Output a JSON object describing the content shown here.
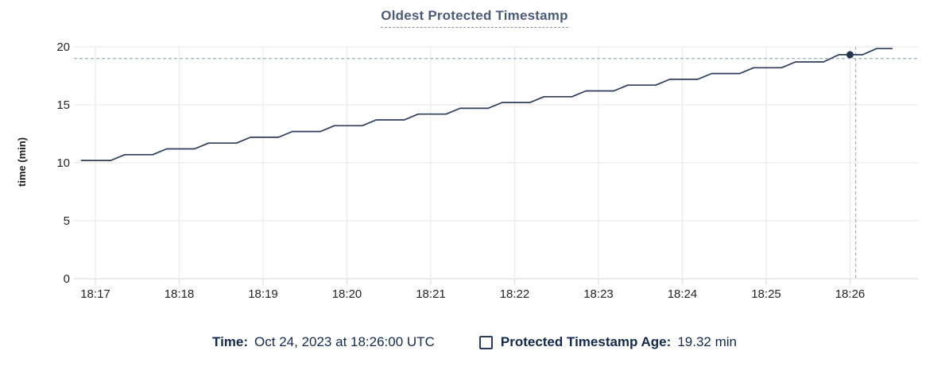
{
  "chart": {
    "title": "Oldest Protected Timestamp",
    "y_axis_label": "time (min)"
  },
  "legend": {
    "time_label": "Time:",
    "time_value": "Oct 24, 2023 at 18:26:00 UTC",
    "series_label": "Protected Timestamp Age:",
    "series_value": "19.32 min"
  },
  "colors": {
    "line": "#2c3d5c",
    "dot": "#24344f",
    "grid": "#ededed",
    "grid_baseline": "#e4e4e4",
    "crosshair": "#9cb1bf",
    "title_text": "#4c5b77",
    "legend_text": "#13294b",
    "axis_text": "#242424"
  },
  "chart_data": {
    "type": "line",
    "title": "Oldest Protected Timestamp",
    "xlabel": "",
    "ylabel": "time (min)",
    "x_ticks": [
      "18:17",
      "18:18",
      "18:19",
      "18:20",
      "18:21",
      "18:22",
      "18:23",
      "18:24",
      "18:25",
      "18:26"
    ],
    "y_ticks": [
      0,
      5,
      10,
      15,
      20
    ],
    "ylim": [
      0,
      20
    ],
    "x_range": [
      "18:16:45",
      "18:26:48"
    ],
    "grid": true,
    "legend_position": "bottom",
    "series": [
      {
        "name": "Protected Timestamp Age",
        "unit": "min",
        "points": [
          [
            "18:16:50",
            10.2
          ],
          [
            "18:17:11",
            10.2
          ],
          [
            "18:17:21",
            10.7
          ],
          [
            "18:17:41",
            10.7
          ],
          [
            "18:17:51",
            11.2
          ],
          [
            "18:18:11",
            11.2
          ],
          [
            "18:18:21",
            11.7
          ],
          [
            "18:18:41",
            11.7
          ],
          [
            "18:18:51",
            12.2
          ],
          [
            "18:19:11",
            12.2
          ],
          [
            "18:19:21",
            12.7
          ],
          [
            "18:19:41",
            12.7
          ],
          [
            "18:19:51",
            13.2
          ],
          [
            "18:20:11",
            13.2
          ],
          [
            "18:20:21",
            13.7
          ],
          [
            "18:20:41",
            13.7
          ],
          [
            "18:20:51",
            14.2
          ],
          [
            "18:21:11",
            14.2
          ],
          [
            "18:21:21",
            14.7
          ],
          [
            "18:21:41",
            14.7
          ],
          [
            "18:21:51",
            15.2
          ],
          [
            "18:22:11",
            15.2
          ],
          [
            "18:22:21",
            15.7
          ],
          [
            "18:22:41",
            15.7
          ],
          [
            "18:22:51",
            16.2
          ],
          [
            "18:23:11",
            16.2
          ],
          [
            "18:23:21",
            16.7
          ],
          [
            "18:23:41",
            16.7
          ],
          [
            "18:23:51",
            17.2
          ],
          [
            "18:24:11",
            17.2
          ],
          [
            "18:24:21",
            17.7
          ],
          [
            "18:24:41",
            17.7
          ],
          [
            "18:24:51",
            18.2
          ],
          [
            "18:25:11",
            18.2
          ],
          [
            "18:25:21",
            18.7
          ],
          [
            "18:25:41",
            18.7
          ],
          [
            "18:25:52",
            19.32
          ],
          [
            "18:26:09",
            19.32
          ],
          [
            "18:26:19",
            19.85
          ],
          [
            "18:26:30",
            19.85
          ]
        ]
      }
    ],
    "cursor": {
      "point_time": "18:26:00",
      "point_value": 19.32,
      "hover_time": "18:26:04",
      "hover_value": 19.0
    }
  }
}
